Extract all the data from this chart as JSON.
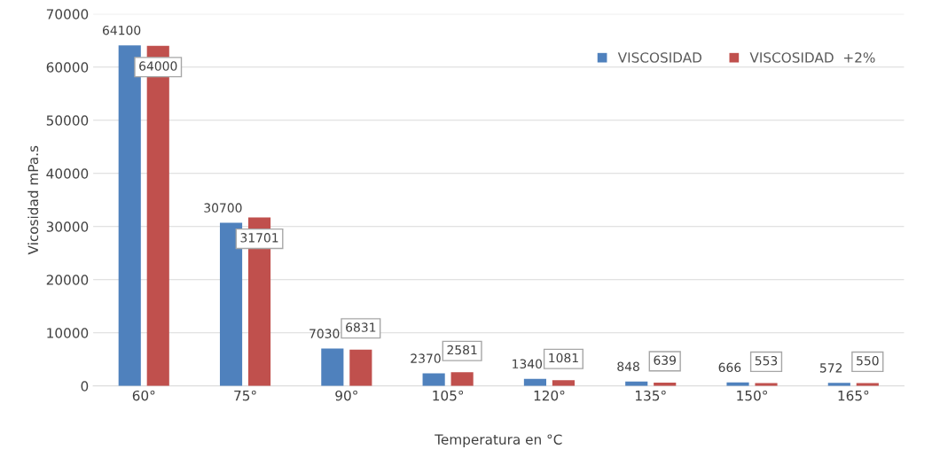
{
  "chart_data": {
    "type": "bar",
    "xlabel": "Temperatura en °C",
    "ylabel": "Vicosidad mPa.s",
    "categories": [
      "60°",
      "75°",
      "90°",
      "105°",
      "120°",
      "135°",
      "150°",
      "165°"
    ],
    "series": [
      {
        "name": "VISCOSIDAD",
        "color": "#4f81bd",
        "values": [
          64100,
          30700,
          7030,
          2370,
          1340,
          848,
          666,
          572
        ]
      },
      {
        "name": "VISCOSIDAD  +2%",
        "color": "#c0504d",
        "values": [
          64000,
          31701,
          6831,
          2581,
          1081,
          639,
          553,
          550
        ]
      }
    ],
    "ylim": [
      0,
      70000
    ],
    "yticks": [
      0,
      10000,
      20000,
      30000,
      40000,
      50000,
      60000,
      70000
    ],
    "grid": "y",
    "legend": "top right",
    "data_labels": true
  }
}
